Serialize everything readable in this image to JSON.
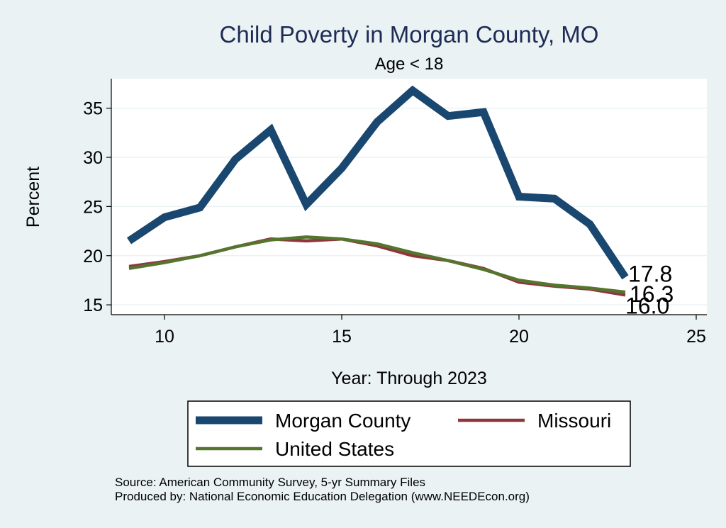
{
  "chart_data": {
    "type": "line",
    "title": "Child Poverty in Morgan County, MO",
    "subtitle": "Age < 18",
    "xlabel": "Year: Through 2023",
    "ylabel": "Percent",
    "xlim": [
      8.5,
      25.3
    ],
    "ylim": [
      14,
      38
    ],
    "xticks": [
      10,
      15,
      20,
      25
    ],
    "yticks": [
      15,
      20,
      25,
      30,
      35
    ],
    "grid": true,
    "legend_position": "bottom",
    "x": [
      9,
      10,
      11,
      12,
      13,
      14,
      15,
      16,
      17,
      18,
      19,
      20,
      21,
      22,
      23
    ],
    "series": [
      {
        "name": "Morgan County",
        "color": "#1a476f",
        "values": [
          21.5,
          23.9,
          24.9,
          29.8,
          32.8,
          25.2,
          28.9,
          33.6,
          36.8,
          34.2,
          34.6,
          26.0,
          25.8,
          23.2,
          17.8
        ],
        "end_label": "17.8"
      },
      {
        "name": "Missouri",
        "color": "#90353b",
        "values": [
          18.9,
          19.4,
          20.0,
          20.9,
          21.7,
          21.5,
          21.7,
          21.0,
          20.0,
          19.5,
          18.7,
          17.3,
          16.9,
          16.6,
          16.0
        ],
        "end_label": "16.0"
      },
      {
        "name": "United States",
        "color": "#55752f",
        "values": [
          18.7,
          19.3,
          20.0,
          20.9,
          21.6,
          21.9,
          21.7,
          21.2,
          20.3,
          19.5,
          18.6,
          17.5,
          17.0,
          16.7,
          16.3
        ],
        "end_label": "16.3"
      }
    ]
  },
  "footer": {
    "source": "Source: American Community Survey, 5-yr Summary Files",
    "produced_by": "Produced by: National Economic Education Delegation (www.NEEDEcon.org)"
  }
}
